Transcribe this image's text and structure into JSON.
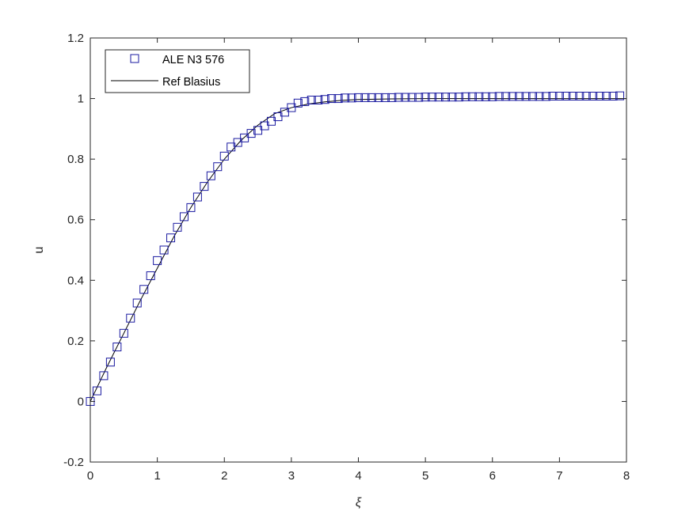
{
  "chart_data": {
    "type": "line",
    "title": "",
    "xlabel": "ξ",
    "ylabel": "u",
    "xlim": [
      0,
      8
    ],
    "ylim": [
      -0.2,
      1.2
    ],
    "xticks": [
      0,
      1,
      2,
      3,
      4,
      5,
      6,
      7,
      8
    ],
    "xtick_labels": [
      "0",
      "1",
      "2",
      "3",
      "4",
      "5",
      "6",
      "7",
      "8"
    ],
    "yticks": [
      -0.2,
      0,
      0.2,
      0.4,
      0.6,
      0.8,
      1,
      1.2
    ],
    "ytick_labels": [
      "-0.2",
      "0",
      "0.2",
      "0.4",
      "0.6",
      "0.8",
      "1",
      "1.2"
    ],
    "grid": false,
    "legend_position": "top-left",
    "series": [
      {
        "name": "ALE N3 576",
        "style": "square-markers",
        "color": "#1a1aa0",
        "x": [
          0,
          0.1,
          0.2,
          0.3,
          0.4,
          0.5,
          0.6,
          0.7,
          0.8,
          0.9,
          1.0,
          1.1,
          1.2,
          1.3,
          1.4,
          1.5,
          1.6,
          1.7,
          1.8,
          1.9,
          2.0,
          2.1,
          2.2,
          2.3,
          2.4,
          2.5,
          2.6,
          2.7,
          2.8,
          2.9,
          3.0,
          3.1,
          3.2,
          3.3,
          3.4,
          3.5,
          3.6,
          3.7,
          3.8,
          3.9,
          4.0,
          4.1,
          4.2,
          4.3,
          4.4,
          4.5,
          4.6,
          4.7,
          4.8,
          4.9,
          5.0,
          5.1,
          5.2,
          5.3,
          5.4,
          5.5,
          5.6,
          5.7,
          5.8,
          5.9,
          6.0,
          6.1,
          6.2,
          6.3,
          6.4,
          6.5,
          6.6,
          6.7,
          6.8,
          6.9,
          7.0,
          7.1,
          7.2,
          7.3,
          7.4,
          7.5,
          7.6,
          7.7,
          7.8,
          7.9
        ],
        "y": [
          0,
          0.035,
          0.085,
          0.13,
          0.18,
          0.225,
          0.275,
          0.325,
          0.37,
          0.415,
          0.465,
          0.5,
          0.54,
          0.575,
          0.61,
          0.64,
          0.675,
          0.71,
          0.745,
          0.775,
          0.81,
          0.84,
          0.855,
          0.87,
          0.885,
          0.895,
          0.91,
          0.925,
          0.94,
          0.955,
          0.97,
          0.985,
          0.99,
          0.995,
          0.995,
          0.997,
          1.0,
          1.0,
          1.002,
          1.002,
          1.003,
          1.003,
          1.003,
          1.003,
          1.003,
          1.003,
          1.004,
          1.004,
          1.004,
          1.004,
          1.005,
          1.005,
          1.005,
          1.005,
          1.005,
          1.005,
          1.006,
          1.006,
          1.006,
          1.006,
          1.006,
          1.007,
          1.007,
          1.007,
          1.007,
          1.007,
          1.007,
          1.007,
          1.007,
          1.008,
          1.008,
          1.008,
          1.008,
          1.008,
          1.008,
          1.008,
          1.008,
          1.008,
          1.008,
          1.009
        ]
      },
      {
        "name": "Ref Blasius",
        "style": "solid-line",
        "color": "#000000",
        "x": [
          0,
          0.25,
          0.5,
          0.75,
          1.0,
          1.25,
          1.5,
          1.75,
          2.0,
          2.25,
          2.5,
          2.75,
          3.0,
          3.25,
          3.5,
          3.75,
          4.0,
          4.5,
          5.0,
          5.5,
          6.0,
          7.0,
          8.0
        ],
        "y": [
          0,
          0.115,
          0.225,
          0.335,
          0.44,
          0.545,
          0.64,
          0.725,
          0.8,
          0.862,
          0.912,
          0.95,
          0.97,
          0.982,
          0.989,
          0.994,
          0.997,
          0.999,
          1.0,
          1.0,
          1.0,
          1.0,
          1.0
        ]
      }
    ]
  }
}
